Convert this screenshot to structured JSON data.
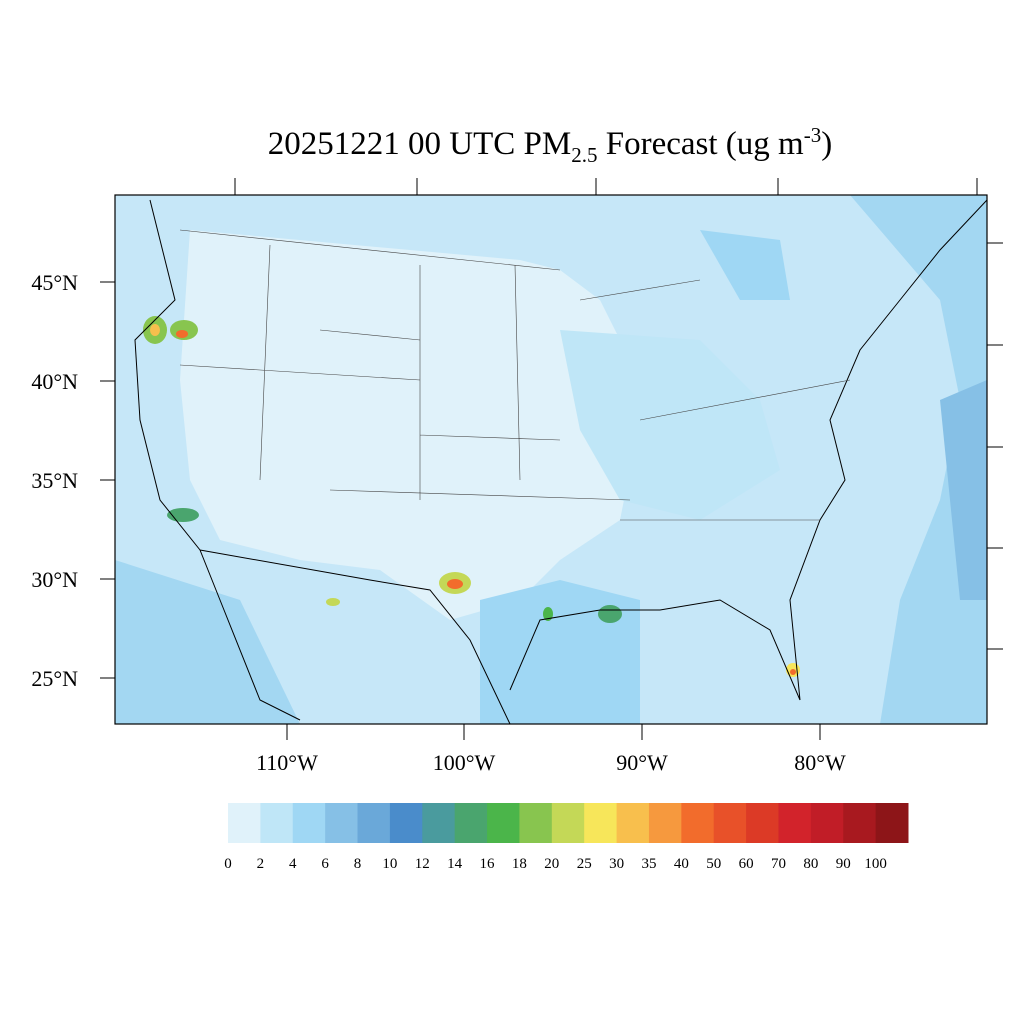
{
  "title": {
    "main": "20251221 00 UTC PM",
    "sub": "2.5",
    "after": " Forecast (ug m",
    "sup": "-3",
    "end": ")"
  },
  "lat_labels": [
    "45°N",
    "40°N",
    "35°N",
    "30°N",
    "25°N"
  ],
  "lon_labels": [
    "110°W",
    "100°W",
    "90°W",
    "80°W"
  ],
  "colorbar": {
    "levels": [
      0,
      2,
      4,
      6,
      8,
      10,
      12,
      14,
      16,
      18,
      20,
      25,
      30,
      35,
      40,
      50,
      60,
      70,
      80,
      90,
      100
    ],
    "colors": [
      "#e0f2fa",
      "#bfe6f7",
      "#9fd7f4",
      "#86c0e6",
      "#6aa8d9",
      "#4a8ccb",
      "#4a9b9e",
      "#4aa56e",
      "#4bb54a",
      "#88c54f",
      "#c4d857",
      "#f7e65a",
      "#f8bf4d",
      "#f6993e",
      "#f26c2c",
      "#e85129",
      "#dc3a26",
      "#d2232b",
      "#c11d27",
      "#a8191f",
      "#8d1518"
    ]
  }
}
